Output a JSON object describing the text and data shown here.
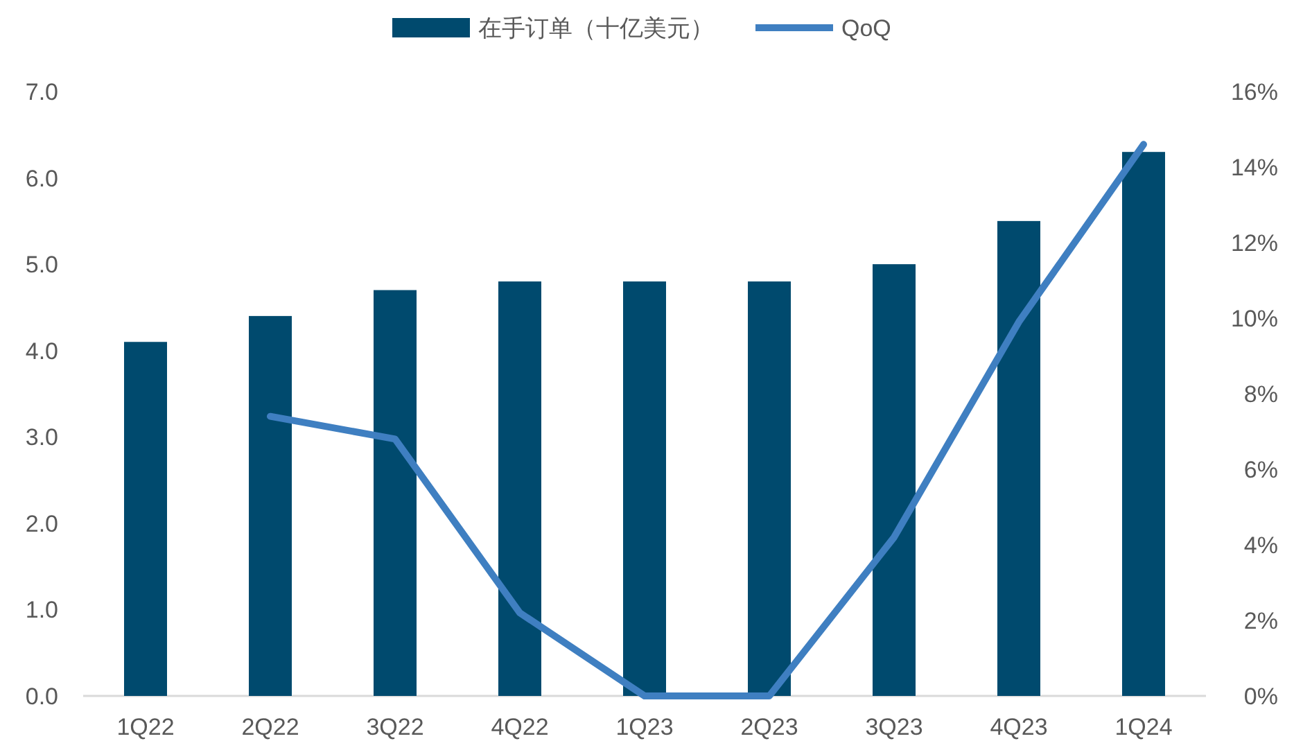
{
  "chart_data": {
    "type": "bar",
    "categories": [
      "1Q22",
      "2Q22",
      "3Q22",
      "4Q22",
      "1Q23",
      "2Q23",
      "3Q23",
      "4Q23",
      "1Q24"
    ],
    "series": [
      {
        "name": "在手订单（十亿美元）",
        "color": "#004a6e",
        "values": [
          4.1,
          4.4,
          4.7,
          4.8,
          4.8,
          4.8,
          5.0,
          5.5,
          6.3
        ]
      },
      {
        "name": "QoQ",
        "type": "line",
        "axis": "y2",
        "color": "#3f7fc1",
        "values": [
          null,
          7.4,
          6.8,
          2.2,
          0,
          0,
          4.2,
          9.9,
          14.6
        ]
      }
    ],
    "ylim": [
      0,
      7
    ],
    "yticks": [
      {
        "value": 0,
        "label": "0.0"
      },
      {
        "value": 1,
        "label": "1.0"
      },
      {
        "value": 2,
        "label": "2.0"
      },
      {
        "value": 3,
        "label": "3.0"
      },
      {
        "value": 4,
        "label": "4.0"
      },
      {
        "value": 5,
        "label": "5.0"
      },
      {
        "value": 6,
        "label": "6.0"
      },
      {
        "value": 7,
        "label": "7.0"
      }
    ],
    "y2lim": [
      0,
      16
    ],
    "y2ticks": [
      {
        "value": 0,
        "label": "0%"
      },
      {
        "value": 2,
        "label": "2%"
      },
      {
        "value": 4,
        "label": "4%"
      },
      {
        "value": 6,
        "label": "6%"
      },
      {
        "value": 8,
        "label": "8%"
      },
      {
        "value": 10,
        "label": "10%"
      },
      {
        "value": 12,
        "label": "12%"
      },
      {
        "value": 14,
        "label": "14%"
      },
      {
        "value": 16,
        "label": "16%"
      }
    ],
    "legend": "top"
  }
}
